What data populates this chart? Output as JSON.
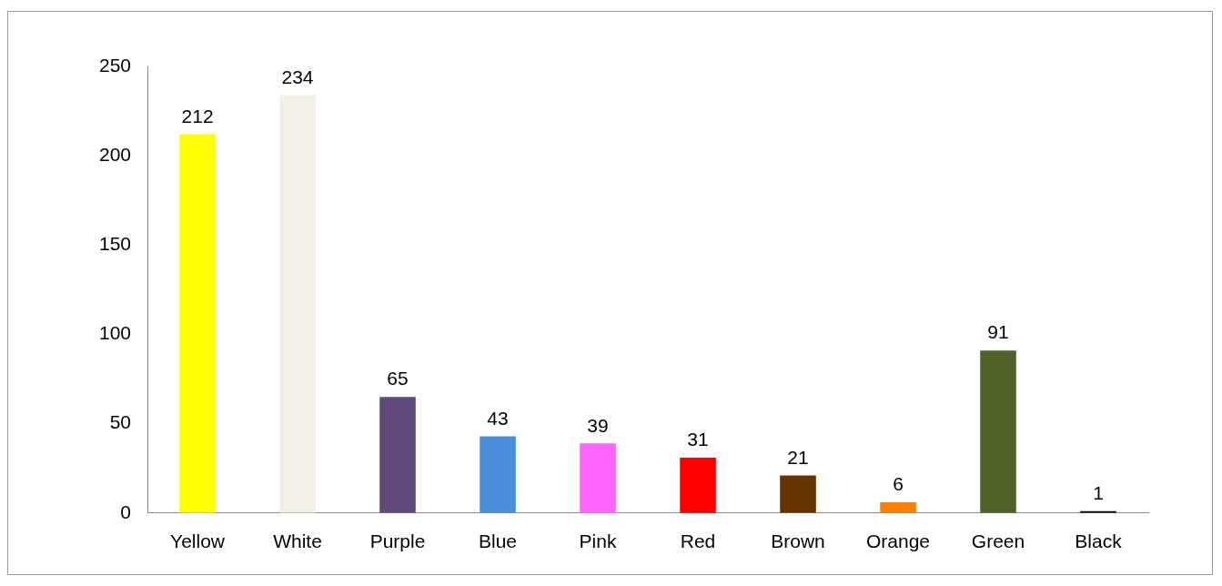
{
  "chart_data": {
    "type": "bar",
    "categories": [
      "Yellow",
      "White",
      "Purple",
      "Blue",
      "Pink",
      "Red",
      "Brown",
      "Orange",
      "Green",
      "Black"
    ],
    "values": [
      212,
      234,
      65,
      43,
      39,
      31,
      21,
      6,
      91,
      1
    ],
    "colors": [
      "#ffff00",
      "#f2f0e6",
      "#5f4a7b",
      "#4a8fdc",
      "#ff66ff",
      "#ff0000",
      "#663300",
      "#ff8000",
      "#4f6228",
      "#000000"
    ],
    "ylim": [
      0,
      250
    ],
    "yticks": [
      0,
      50,
      100,
      150,
      200,
      250
    ],
    "grid": false,
    "legend": false,
    "data_labels": true
  }
}
